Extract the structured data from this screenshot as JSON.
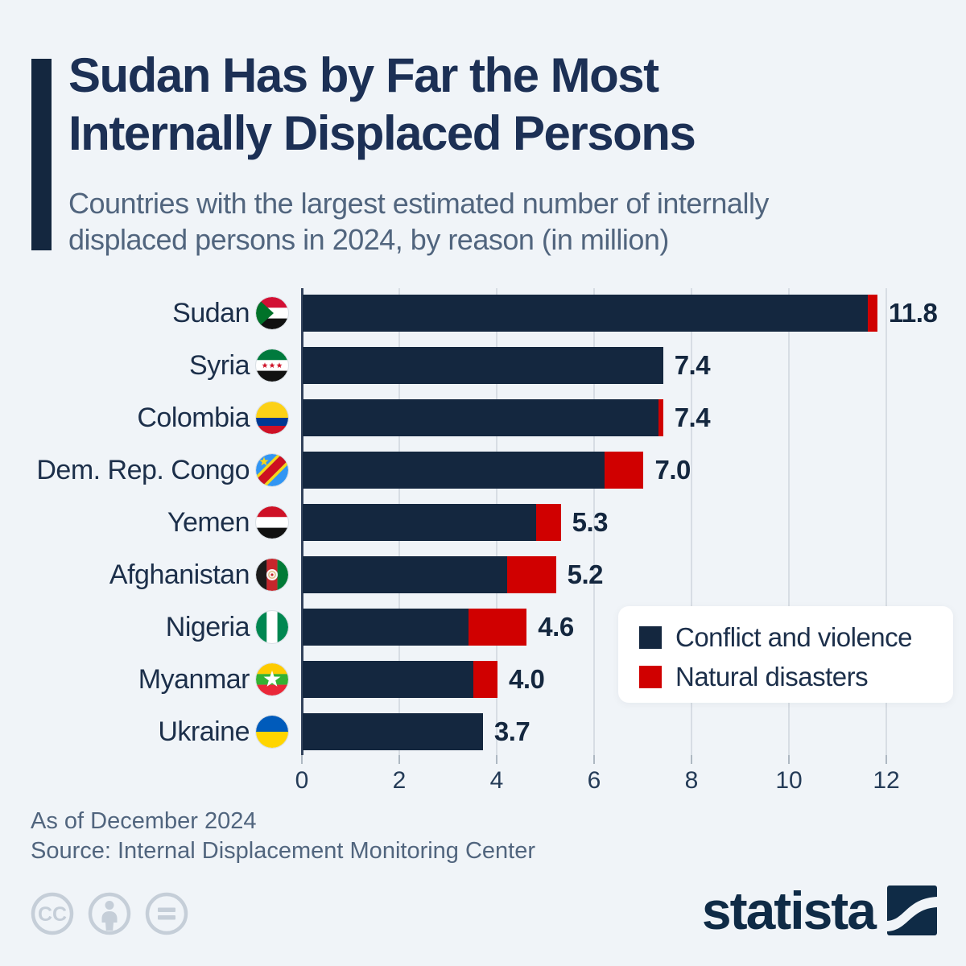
{
  "page": {
    "background": "#f0f4f8"
  },
  "header": {
    "title_line1": "Sudan Has by Far the Most",
    "title_line2": "Internally Displaced Persons",
    "subtitle_line1": "Countries with the largest estimated number of internally",
    "subtitle_line2": "displaced persons in 2024, by reason (in million)"
  },
  "chart_data": {
    "type": "bar",
    "orientation": "horizontal",
    "stacked": true,
    "title": "Countries with the largest estimated number of internally displaced persons in 2024, by reason (in million)",
    "unit": "million persons",
    "categories": [
      "Sudan",
      "Syria",
      "Colombia",
      "Dem. Rep. Congo",
      "Yemen",
      "Afghanistan",
      "Nigeria",
      "Myanmar",
      "Ukraine"
    ],
    "series": [
      {
        "name": "Conflict and violence",
        "color": "#14273f",
        "values": [
          11.6,
          7.4,
          7.3,
          6.2,
          4.8,
          4.2,
          3.4,
          3.5,
          3.7
        ]
      },
      {
        "name": "Natural disasters",
        "color": "#d00000",
        "values": [
          0.2,
          0.0,
          0.1,
          0.8,
          0.5,
          1.0,
          1.2,
          0.5,
          0.0
        ]
      }
    ],
    "totals": [
      11.8,
      7.4,
      7.4,
      7.0,
      5.3,
      5.2,
      4.6,
      4.0,
      3.7
    ],
    "total_labels": [
      "11.8",
      "7.4",
      "7.4",
      "7.0",
      "5.3",
      "5.2",
      "4.6",
      "4.0",
      "3.7"
    ],
    "x_ticks": [
      0,
      2,
      4,
      6,
      8,
      10,
      12
    ],
    "x_tick_labels": [
      "0",
      "2",
      "4",
      "6",
      "8",
      "10",
      "12"
    ],
    "xlim": [
      0,
      13
    ],
    "grid": "vertical",
    "legend_position": "inside-right",
    "flags": [
      "sudan-flag-icon",
      "syria-flag-icon",
      "colombia-flag-icon",
      "drc-flag-icon",
      "yemen-flag-icon",
      "afghanistan-flag-icon",
      "nigeria-flag-icon",
      "myanmar-flag-icon",
      "ukraine-flag-icon"
    ]
  },
  "legend": {
    "items": [
      {
        "label": "Conflict and violence",
        "color": "#14273f"
      },
      {
        "label": "Natural disasters",
        "color": "#d00000"
      }
    ]
  },
  "footer": {
    "as_of": "As of December 2024",
    "source": "Source: Internal Displacement Monitoring Center"
  },
  "branding": {
    "logo_text": "statista",
    "logo_color": "#0f2b46",
    "license_icons": [
      "cc-icon",
      "attribution-person-icon",
      "equals-nd-icon"
    ],
    "license_icon_color": "#c5ced8"
  }
}
